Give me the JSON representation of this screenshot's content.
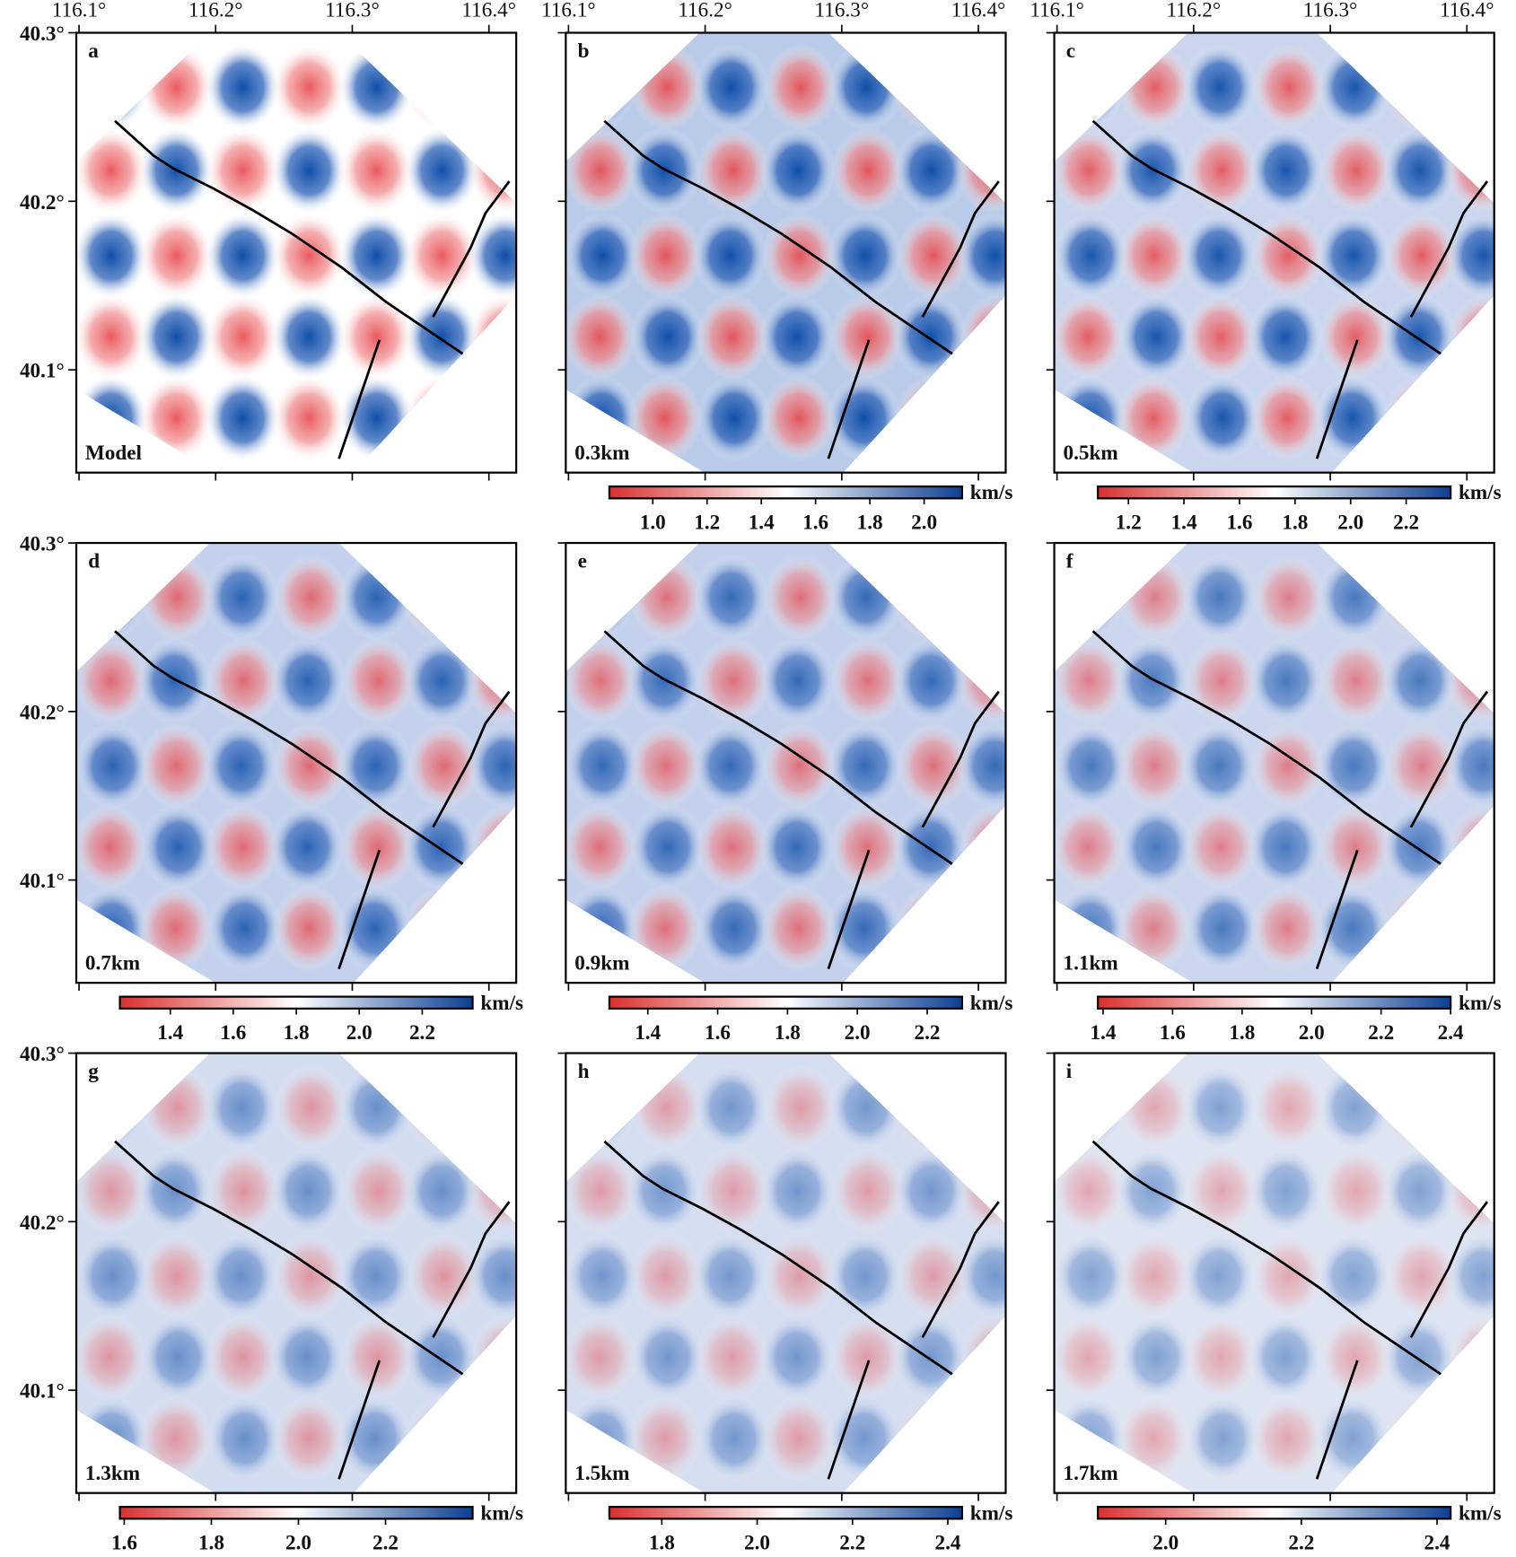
{
  "map": {
    "xlim": [
      116.098,
      116.42
    ],
    "ylim": [
      40.039,
      40.3
    ],
    "longitude_ticks": [
      {
        "value": 116.1,
        "label": "116.1°"
      },
      {
        "value": 116.2,
        "label": "116.2°"
      },
      {
        "value": 116.3,
        "label": "116.3°"
      },
      {
        "value": 116.4,
        "label": "116.4°"
      }
    ],
    "latitude_ticks": [
      {
        "value": 40.3,
        "label": "40.3°"
      },
      {
        "value": 40.2,
        "label": "40.2°"
      },
      {
        "value": 40.1,
        "label": "40.1°"
      }
    ]
  },
  "panels": [
    {
      "letter": "a",
      "depth": "Model"
    },
    {
      "letter": "b",
      "depth": "0.3km",
      "colorbar": {
        "unit": "km/s",
        "range": [
          0.84,
          2.14
        ],
        "ticks": [
          {
            "value": 1,
            "label": "1.0"
          },
          1.2,
          1.4,
          1.6,
          1.8,
          {
            "value": 2,
            "label": "2.0"
          }
        ]
      }
    },
    {
      "letter": "c",
      "depth": "0.5km",
      "colorbar": {
        "unit": "km/s",
        "range": [
          1.09,
          2.36
        ],
        "ticks": [
          1.2,
          1.4,
          1.6,
          1.8,
          {
            "value": 2,
            "label": "2.0"
          },
          2.2
        ]
      }
    },
    {
      "letter": "d",
      "depth": "0.7km",
      "colorbar": {
        "unit": "km/s",
        "range": [
          1.24,
          2.36
        ],
        "ticks": [
          1.4,
          1.6,
          1.8,
          {
            "value": 2,
            "label": "2.0"
          },
          2.2
        ]
      }
    },
    {
      "letter": "e",
      "depth": "0.9km",
      "colorbar": {
        "unit": "km/s",
        "range": [
          1.29,
          2.3
        ],
        "ticks": [
          1.4,
          1.6,
          1.8,
          {
            "value": 2,
            "label": "2.0"
          },
          2.2
        ]
      }
    },
    {
      "letter": "f",
      "depth": "1.1km",
      "colorbar": {
        "unit": "km/s",
        "range": [
          1.385,
          2.4
        ],
        "ticks": [
          1.4,
          1.6,
          1.8,
          {
            "value": 2,
            "label": "2.0"
          },
          2.2,
          2.4
        ]
      }
    },
    {
      "letter": "g",
      "depth": "1.3km",
      "colorbar": {
        "unit": "km/s",
        "range": [
          1.59,
          2.4
        ],
        "ticks": [
          1.6,
          1.8,
          {
            "value": 2,
            "label": "2.0"
          },
          2.2
        ]
      }
    },
    {
      "letter": "h",
      "depth": "1.5km",
      "colorbar": {
        "unit": "km/s",
        "range": [
          1.69,
          2.43
        ],
        "ticks": [
          1.8,
          {
            "value": 2,
            "label": "2.0"
          },
          2.2,
          2.4
        ]
      }
    },
    {
      "letter": "i",
      "depth": "1.7km",
      "colorbar": {
        "unit": "km/s",
        "range": [
          1.9,
          2.42
        ],
        "ticks": [
          {
            "value": 2,
            "label": "2.0"
          },
          2.2,
          2.4
        ]
      }
    }
  ]
}
